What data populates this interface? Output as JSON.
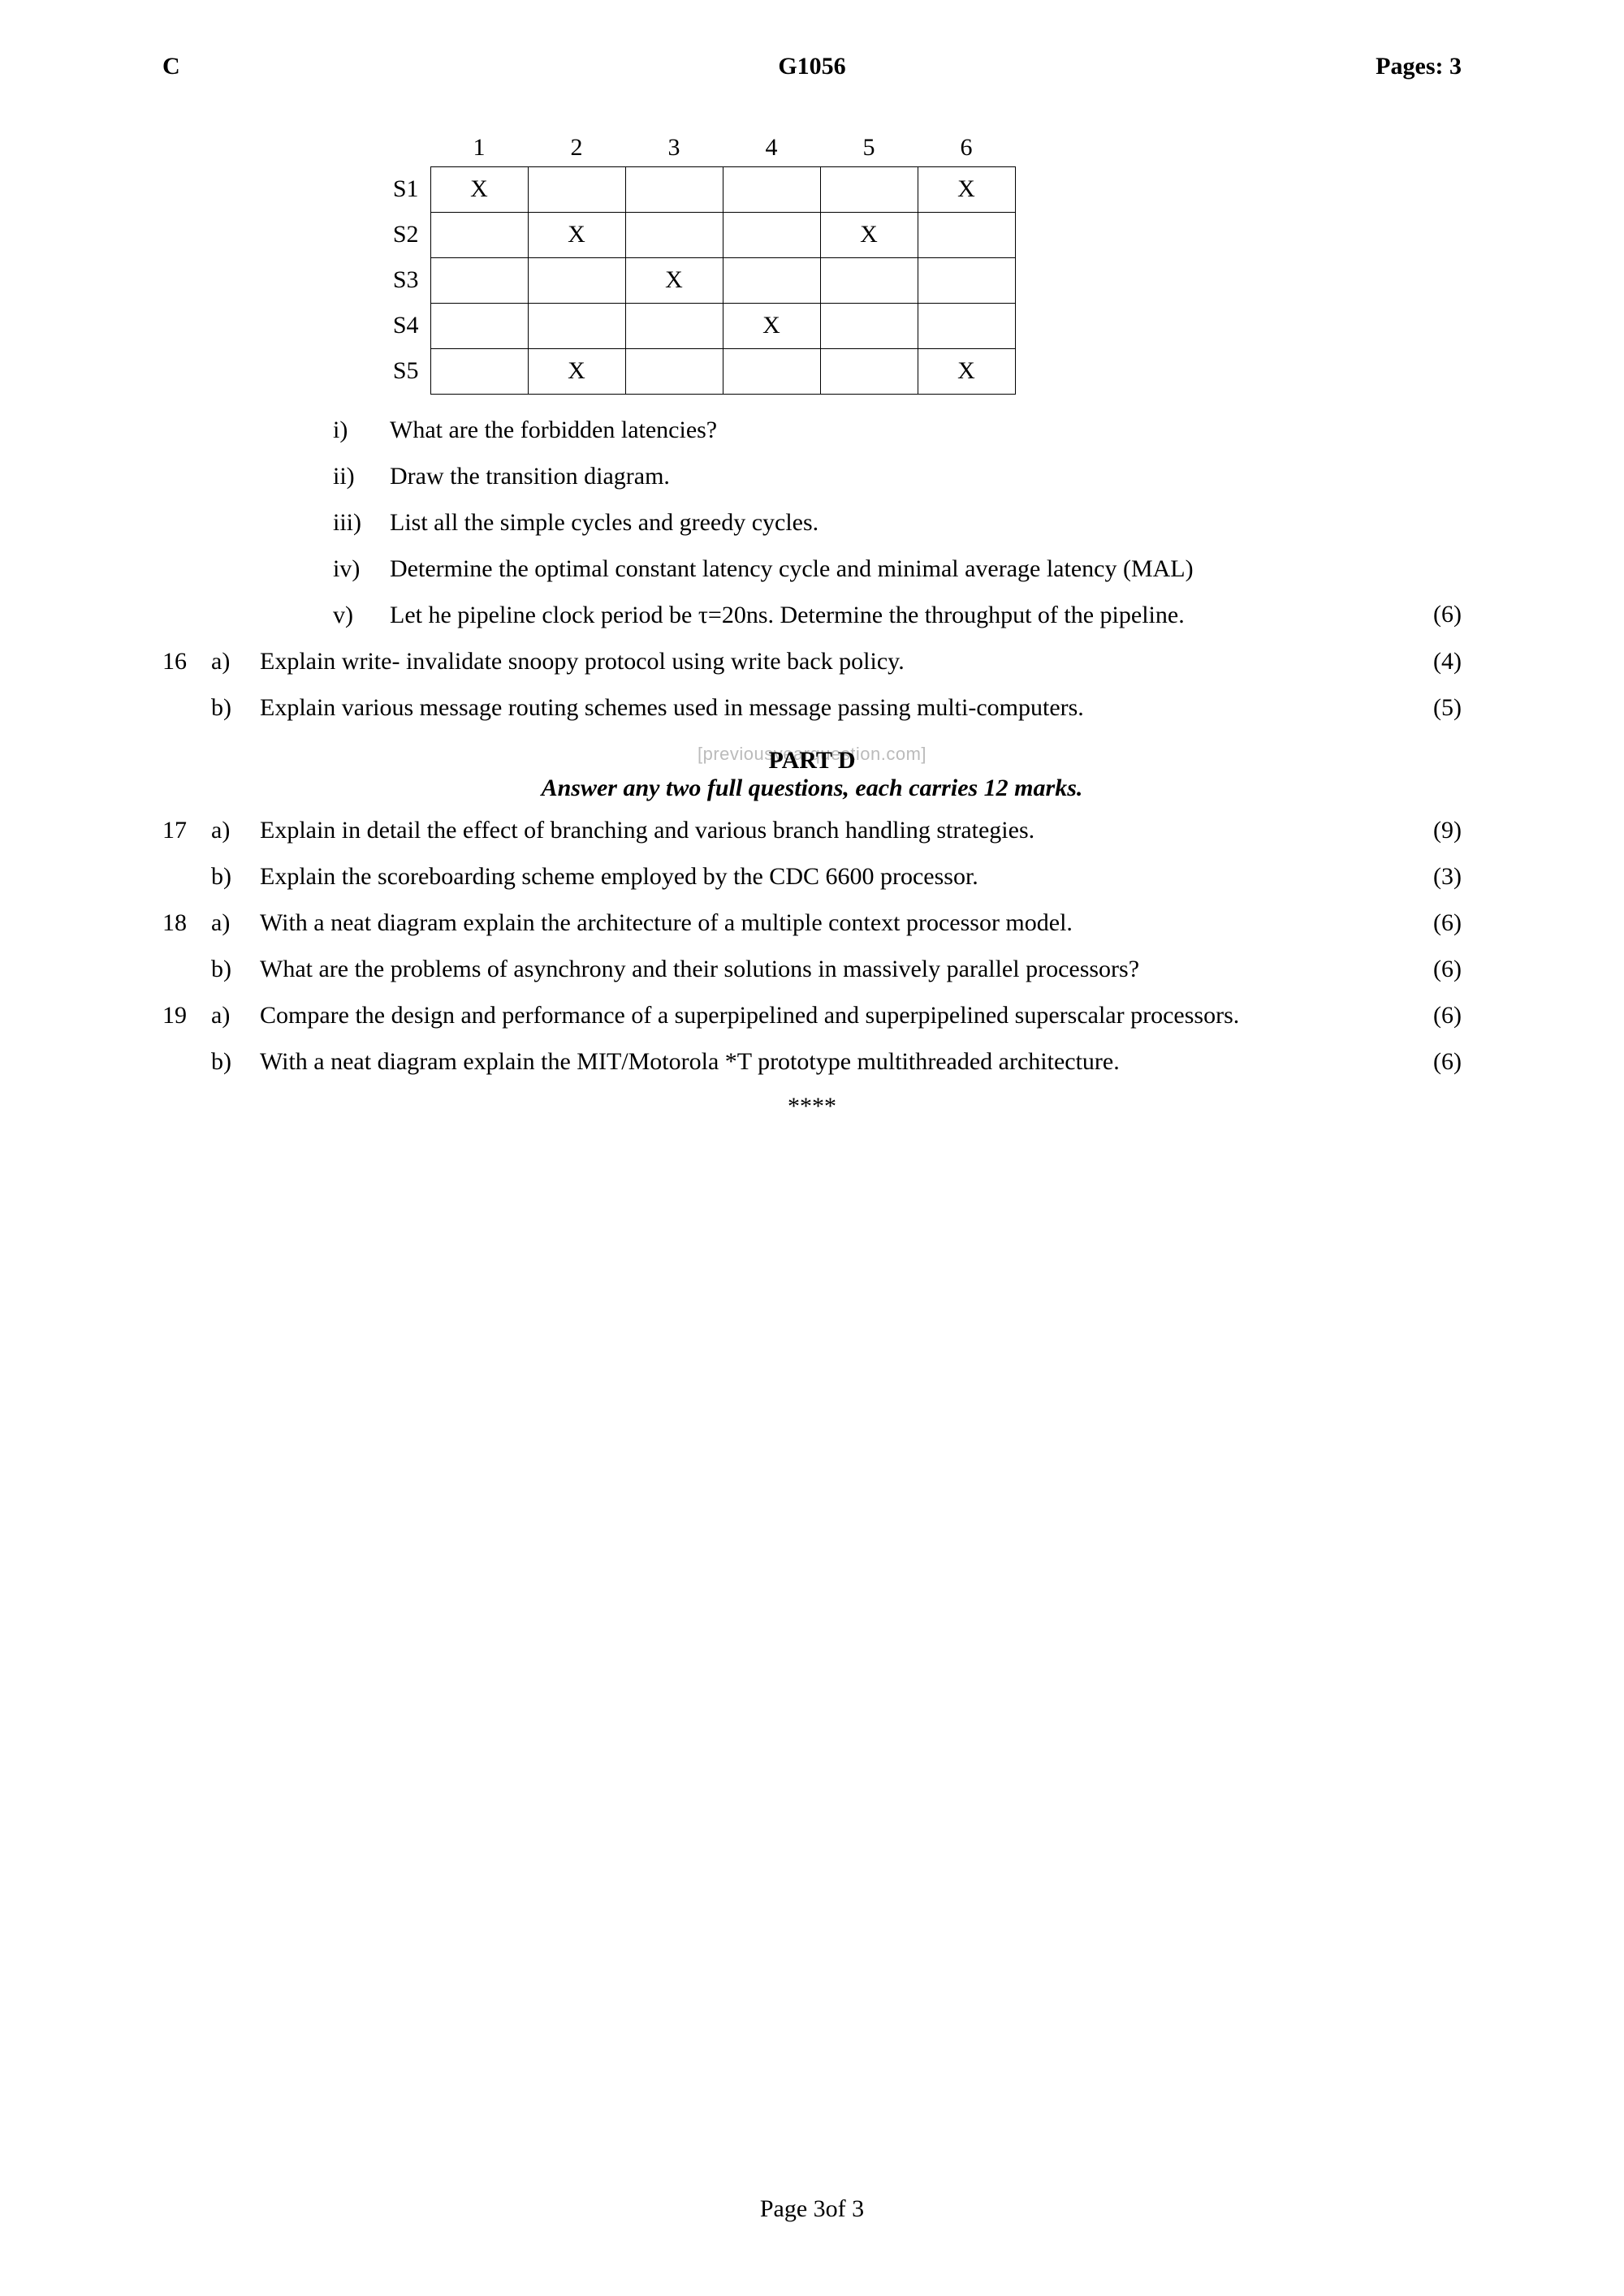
{
  "header": {
    "left": "C",
    "center": "G1056",
    "right": "Pages: 3"
  },
  "table": {
    "cols": [
      "1",
      "2",
      "3",
      "4",
      "5",
      "6"
    ],
    "rows": [
      "S1",
      "S2",
      "S3",
      "S4",
      "S5"
    ],
    "cells": [
      [
        "X",
        "",
        "",
        "",
        "",
        "X"
      ],
      [
        "",
        "X",
        "",
        "",
        "X",
        ""
      ],
      [
        "",
        "",
        "X",
        "",
        "",
        ""
      ],
      [
        "",
        "",
        "",
        "X",
        "",
        ""
      ],
      [
        "",
        "X",
        "",
        "",
        "",
        "X"
      ]
    ]
  },
  "sublist": [
    {
      "roman": "i)",
      "text": "What are the forbidden latencies?"
    },
    {
      "roman": "ii)",
      "text": "Draw the transition diagram."
    },
    {
      "roman": "iii)",
      "text": "List all the simple cycles and greedy cycles."
    },
    {
      "roman": "iv)",
      "text": "Determine the optimal constant latency cycle and minimal average latency (MAL)"
    },
    {
      "roman": "v)",
      "text": "Let he pipeline clock period be τ=20ns. Determine the throughput of the pipeline."
    }
  ],
  "sublist_marks": "(6)",
  "questions_c": [
    {
      "num": "16",
      "label": "a)",
      "text": "Explain write- invalidate snoopy protocol using write back policy.",
      "marks": "(4)"
    },
    {
      "num": "",
      "label": "b)",
      "text": "Explain various message routing schemes used in message passing multi-computers.",
      "marks": "(5)"
    }
  ],
  "part_d": {
    "title": "PART D",
    "sub": "Answer any two full questions, each carries 12 marks.",
    "watermark": "[previousyearquestion.com]"
  },
  "questions_d": [
    {
      "num": "17",
      "label": "a)",
      "text": "Explain in detail the effect of branching and various branch handling strategies.",
      "marks": "(9)"
    },
    {
      "num": "",
      "label": "b)",
      "text": "Explain the scoreboarding scheme employed by the CDC 6600 processor.",
      "marks": "(3)"
    },
    {
      "num": "18",
      "label": "a)",
      "text": "With a neat diagram explain the architecture of a multiple context processor model.",
      "marks": "(6)"
    },
    {
      "num": "",
      "label": "b)",
      "text": "What are  the problems of asynchrony and  their solutions in massively parallel processors?",
      "marks": "(6)"
    },
    {
      "num": "19",
      "label": "a)",
      "text": "Compare the design and performance of a superpipelined and superpipelined superscalar processors.",
      "marks": "(6)"
    },
    {
      "num": "",
      "label": "b)",
      "text": "With a neat diagram explain the  MIT/Motorola *T prototype multithreaded architecture.",
      "marks": "(6)"
    }
  ],
  "end": "****",
  "footer": "Page 3of 3"
}
